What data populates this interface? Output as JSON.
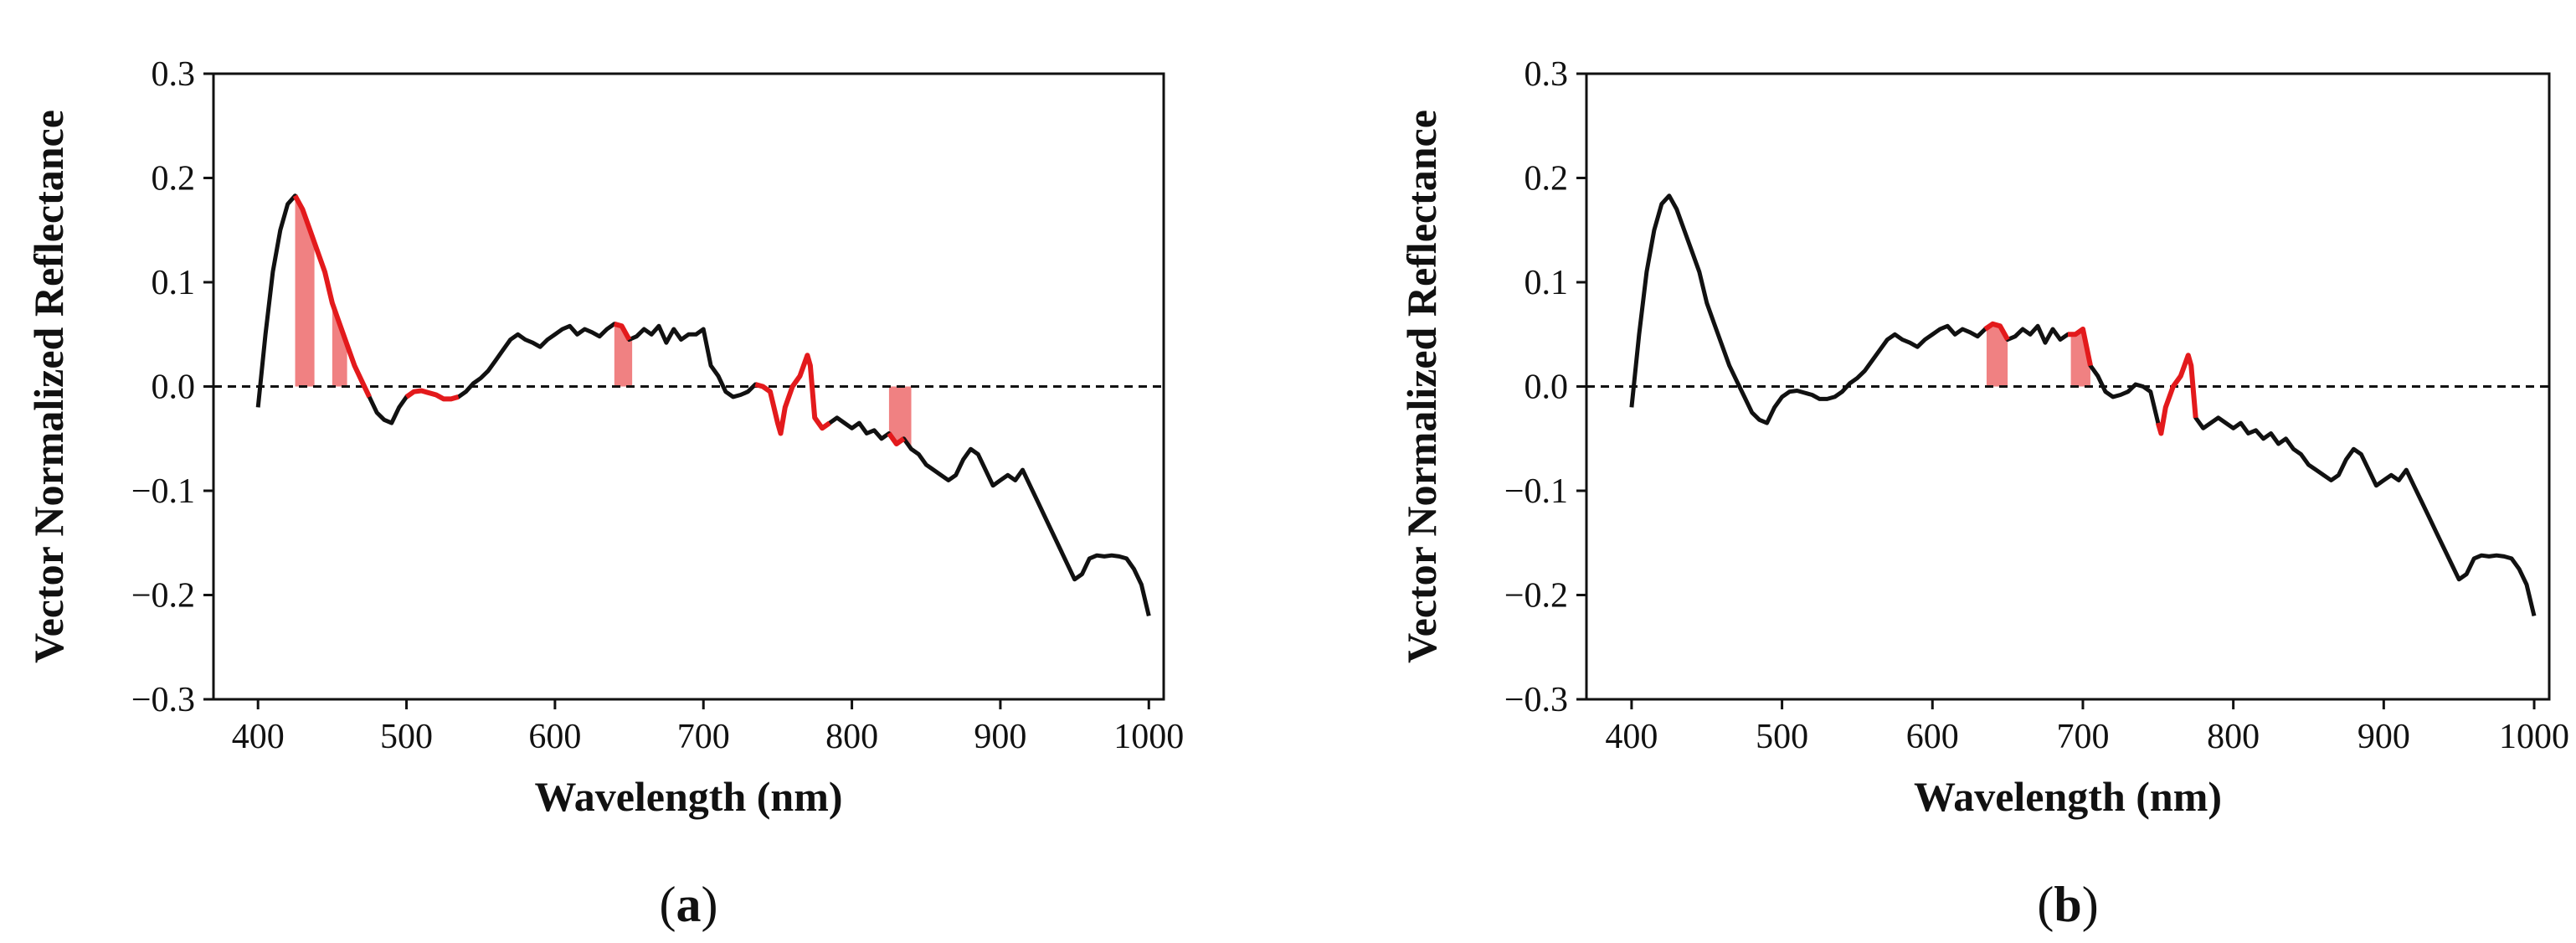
{
  "chart_data": [
    {
      "type": "line",
      "panel_label": "a",
      "xlabel": "Wavelength (nm)",
      "ylabel": "Vector Normalized Reflectance",
      "xlim": [
        370,
        1010
      ],
      "ylim": [
        -0.3,
        0.3
      ],
      "xticks": [
        400,
        500,
        600,
        700,
        800,
        900,
        1000
      ],
      "yticks": [
        0.3,
        0.2,
        0.1,
        0.0,
        -0.1,
        -0.2,
        -0.3
      ],
      "ytick_labels": [
        "0.3",
        "0.2",
        "0.1",
        "0.0",
        "−0.1",
        "−0.2",
        "−0.3"
      ],
      "reference_line": 0.0,
      "grid": false,
      "series": [
        {
          "color": "#111111",
          "x": [
            400,
            405,
            410,
            415,
            420,
            425,
            430,
            435,
            440,
            445,
            450,
            455,
            460,
            465,
            470,
            475,
            480,
            485,
            490,
            495,
            500,
            505,
            510,
            515,
            520,
            525,
            530,
            535,
            540,
            545,
            550,
            555,
            560,
            565,
            570,
            575,
            580,
            585,
            590,
            595,
            600,
            605,
            610,
            615,
            620,
            625,
            630,
            635,
            640,
            645,
            650,
            655,
            660,
            665,
            670,
            675,
            680,
            685,
            690,
            695,
            700,
            705,
            710,
            715,
            720,
            725,
            730,
            735,
            740,
            745,
            750,
            752,
            755,
            760,
            765,
            770,
            772,
            775,
            780,
            785,
            790,
            795,
            800,
            805,
            810,
            815,
            820,
            825,
            830,
            835,
            840,
            845,
            850,
            855,
            860,
            865,
            870,
            875,
            880,
            885,
            890,
            895,
            900,
            905,
            910,
            915,
            920,
            925,
            930,
            935,
            940,
            945,
            950,
            955,
            960,
            965,
            970,
            975,
            980,
            985,
            990,
            995,
            1000
          ],
          "y": [
            -0.02,
            0.05,
            0.11,
            0.15,
            0.175,
            0.183,
            0.17,
            0.15,
            0.13,
            0.11,
            0.08,
            0.06,
            0.04,
            0.02,
            0.005,
            -0.01,
            -0.025,
            -0.032,
            -0.035,
            -0.02,
            -0.01,
            -0.005,
            -0.004,
            -0.006,
            -0.008,
            -0.012,
            -0.012,
            -0.01,
            -0.005,
            0.003,
            0.008,
            0.015,
            0.025,
            0.035,
            0.045,
            0.05,
            0.045,
            0.042,
            0.038,
            0.045,
            0.05,
            0.055,
            0.058,
            0.05,
            0.055,
            0.052,
            0.048,
            0.055,
            0.06,
            0.058,
            0.045,
            0.048,
            0.055,
            0.05,
            0.058,
            0.042,
            0.055,
            0.045,
            0.05,
            0.05,
            0.055,
            0.02,
            0.01,
            -0.005,
            -0.01,
            -0.008,
            -0.005,
            0.002,
            0.0,
            -0.005,
            -0.035,
            -0.045,
            -0.02,
            0.0,
            0.01,
            0.03,
            0.02,
            -0.03,
            -0.04,
            -0.035,
            -0.03,
            -0.035,
            -0.04,
            -0.035,
            -0.045,
            -0.042,
            -0.05,
            -0.045,
            -0.055,
            -0.05,
            -0.06,
            -0.065,
            -0.075,
            -0.08,
            -0.085,
            -0.09,
            -0.085,
            -0.07,
            -0.06,
            -0.065,
            -0.08,
            -0.095,
            -0.09,
            -0.085,
            -0.09,
            -0.08,
            -0.095,
            -0.11,
            -0.125,
            -0.14,
            -0.155,
            -0.17,
            -0.185,
            -0.18,
            -0.165,
            -0.162,
            -0.163,
            -0.162,
            -0.163,
            -0.165,
            -0.175,
            -0.19,
            -0.22
          ]
        }
      ],
      "highlight_segments": [
        [
          425,
          475
        ],
        [
          500,
          535
        ],
        [
          640,
          650
        ],
        [
          735,
          785
        ],
        [
          825,
          835
        ]
      ],
      "highlight_bands": [
        [
          425,
          438
        ],
        [
          450,
          460
        ],
        [
          640,
          652
        ],
        [
          825,
          840
        ]
      ],
      "highlight_color": "#e31a1c"
    },
    {
      "type": "line",
      "panel_label": "b",
      "xlabel": "Wavelength (nm)",
      "ylabel": "Vector Normalized Reflectance",
      "xlim": [
        370,
        1010
      ],
      "ylim": [
        -0.3,
        0.3
      ],
      "xticks": [
        400,
        500,
        600,
        700,
        800,
        900,
        1000
      ],
      "yticks": [
        0.3,
        0.2,
        0.1,
        0.0,
        -0.1,
        -0.2,
        -0.3
      ],
      "ytick_labels": [
        "0.3",
        "0.2",
        "0.1",
        "0.0",
        "−0.1",
        "−0.2",
        "−0.3"
      ],
      "reference_line": 0.0,
      "grid": false,
      "series": [
        {
          "color": "#111111",
          "x": [
            400,
            405,
            410,
            415,
            420,
            425,
            430,
            435,
            440,
            445,
            450,
            455,
            460,
            465,
            470,
            475,
            480,
            485,
            490,
            495,
            500,
            505,
            510,
            515,
            520,
            525,
            530,
            535,
            540,
            545,
            550,
            555,
            560,
            565,
            570,
            575,
            580,
            585,
            590,
            595,
            600,
            605,
            610,
            615,
            620,
            625,
            630,
            635,
            640,
            645,
            650,
            655,
            660,
            665,
            670,
            675,
            680,
            685,
            690,
            695,
            700,
            705,
            710,
            715,
            720,
            725,
            730,
            735,
            740,
            745,
            750,
            752,
            755,
            760,
            765,
            770,
            772,
            775,
            780,
            785,
            790,
            795,
            800,
            805,
            810,
            815,
            820,
            825,
            830,
            835,
            840,
            845,
            850,
            855,
            860,
            865,
            870,
            875,
            880,
            885,
            890,
            895,
            900,
            905,
            910,
            915,
            920,
            925,
            930,
            935,
            940,
            945,
            950,
            955,
            960,
            965,
            970,
            975,
            980,
            985,
            990,
            995,
            1000
          ],
          "y": [
            -0.02,
            0.05,
            0.11,
            0.15,
            0.175,
            0.183,
            0.17,
            0.15,
            0.13,
            0.11,
            0.08,
            0.06,
            0.04,
            0.02,
            0.005,
            -0.01,
            -0.025,
            -0.032,
            -0.035,
            -0.02,
            -0.01,
            -0.005,
            -0.004,
            -0.006,
            -0.008,
            -0.012,
            -0.012,
            -0.01,
            -0.005,
            0.003,
            0.008,
            0.015,
            0.025,
            0.035,
            0.045,
            0.05,
            0.045,
            0.042,
            0.038,
            0.045,
            0.05,
            0.055,
            0.058,
            0.05,
            0.055,
            0.052,
            0.048,
            0.055,
            0.06,
            0.058,
            0.045,
            0.048,
            0.055,
            0.05,
            0.058,
            0.042,
            0.055,
            0.045,
            0.05,
            0.05,
            0.055,
            0.02,
            0.01,
            -0.005,
            -0.01,
            -0.008,
            -0.005,
            0.002,
            0.0,
            -0.005,
            -0.035,
            -0.045,
            -0.02,
            0.0,
            0.01,
            0.03,
            0.02,
            -0.03,
            -0.04,
            -0.035,
            -0.03,
            -0.035,
            -0.04,
            -0.035,
            -0.045,
            -0.042,
            -0.05,
            -0.045,
            -0.055,
            -0.05,
            -0.06,
            -0.065,
            -0.075,
            -0.08,
            -0.085,
            -0.09,
            -0.085,
            -0.07,
            -0.06,
            -0.065,
            -0.08,
            -0.095,
            -0.09,
            -0.085,
            -0.09,
            -0.08,
            -0.095,
            -0.11,
            -0.125,
            -0.14,
            -0.155,
            -0.17,
            -0.185,
            -0.18,
            -0.165,
            -0.162,
            -0.163,
            -0.162,
            -0.163,
            -0.165,
            -0.175,
            -0.19,
            -0.22
          ]
        }
      ],
      "highlight_segments": [
        [
          635,
          650
        ],
        [
          690,
          705
        ],
        [
          750,
          775
        ]
      ],
      "highlight_bands": [
        [
          636,
          650
        ],
        [
          692,
          705
        ]
      ],
      "highlight_color": "#e31a1c"
    }
  ]
}
